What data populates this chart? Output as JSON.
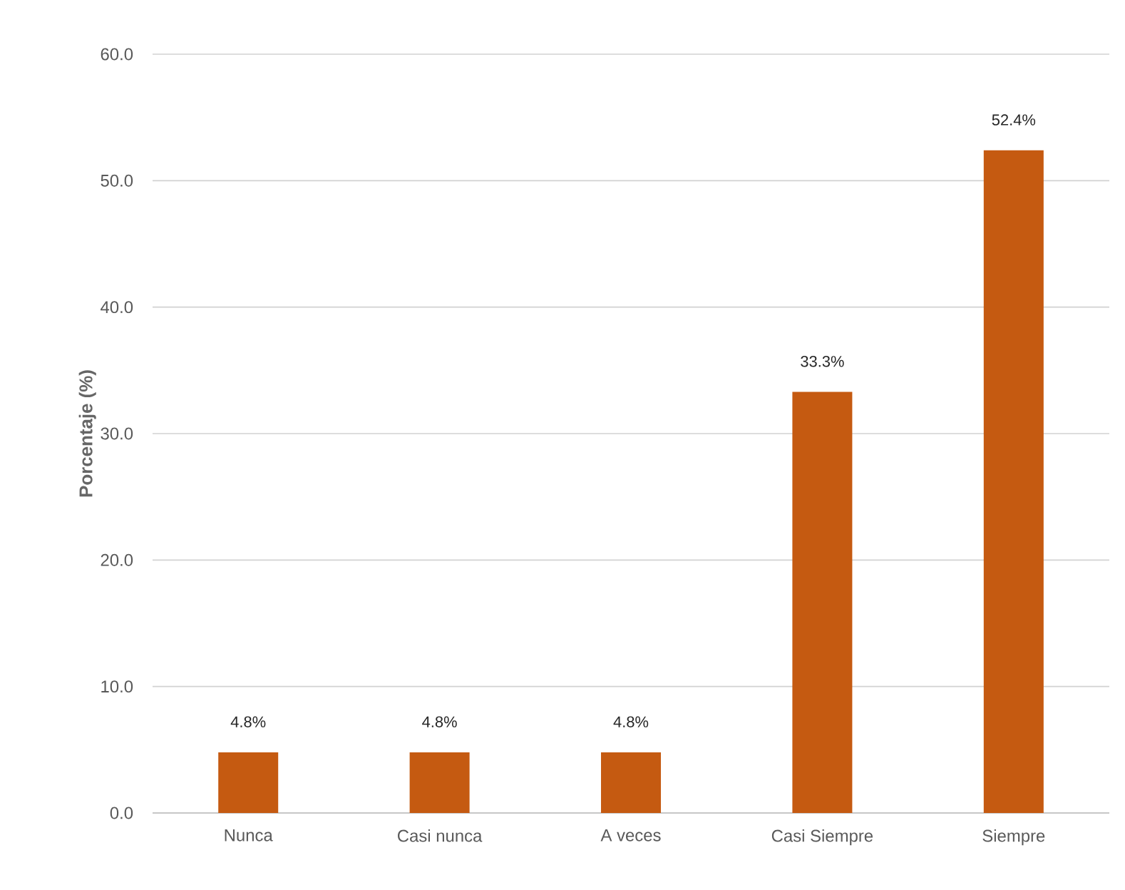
{
  "chart_data": {
    "type": "bar",
    "ylabel": "Porcentaje (%)",
    "categories": [
      "Nunca",
      "Casi nunca",
      "A veces",
      "Casi Siempre",
      "Siempre"
    ],
    "values": [
      4.8,
      4.8,
      4.8,
      33.3,
      52.4
    ],
    "value_labels": [
      "4.8%",
      "4.8%",
      "4.8%",
      "33.3%",
      "52.4%"
    ],
    "color": "#c55a11",
    "ylim": [
      0,
      60
    ],
    "yticks": [
      {
        "value": 0,
        "label": "0.0"
      },
      {
        "value": 10,
        "label": "10.0"
      },
      {
        "value": 20,
        "label": "20.0"
      },
      {
        "value": 30,
        "label": "30.0"
      },
      {
        "value": 40,
        "label": "40.0"
      },
      {
        "value": 50,
        "label": "50.0"
      },
      {
        "value": 60,
        "label": "60.0"
      }
    ],
    "grid": "y"
  }
}
